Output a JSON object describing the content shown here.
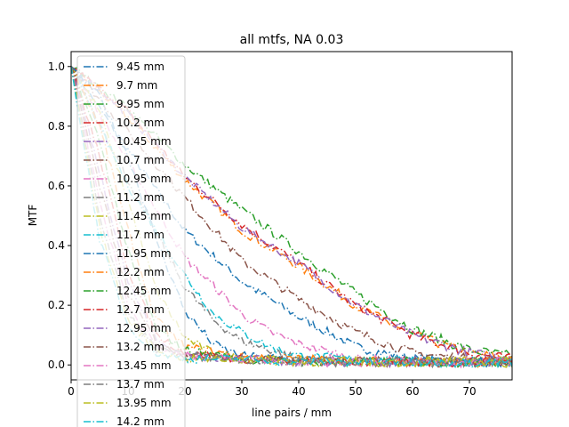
{
  "chart_data": {
    "type": "line",
    "title": "all mtfs, NA 0.03",
    "xlabel": "line pairs / mm",
    "ylabel": "MTF",
    "xlim": [
      0,
      77.5
    ],
    "ylim": [
      -0.05,
      1.05
    ],
    "xticks": [
      0,
      10,
      20,
      30,
      40,
      50,
      60,
      70
    ],
    "yticks": [
      0.0,
      0.2,
      0.4,
      0.6,
      0.8,
      1.0
    ],
    "xtick_labels": [
      "0",
      "10",
      "20",
      "30",
      "40",
      "50",
      "60",
      "70"
    ],
    "ytick_labels": [
      "0.0",
      "0.2",
      "0.4",
      "0.6",
      "0.8",
      "1.0"
    ],
    "grid": false,
    "line_style": "dash-dot",
    "legend": {
      "placement": "upper-left"
    },
    "noise_amplitude": 0.012,
    "series": [
      {
        "name": "9.45 mm",
        "color": "#1f77b4",
        "x": [
          0,
          10,
          20,
          30,
          40,
          50,
          60,
          70,
          77
        ],
        "y": [
          1.0,
          0.72,
          0.45,
          0.28,
          0.16,
          0.06,
          0.02,
          0.01,
          0.01
        ]
      },
      {
        "name": "9.7 mm",
        "color": "#ff7f0e",
        "x": [
          0,
          10,
          20,
          30,
          40,
          50,
          60,
          70,
          77
        ],
        "y": [
          1.0,
          0.83,
          0.62,
          0.45,
          0.33,
          0.2,
          0.1,
          0.04,
          0.02
        ]
      },
      {
        "name": "9.95 mm",
        "color": "#2ca02c",
        "x": [
          0,
          10,
          20,
          30,
          40,
          50,
          60,
          70,
          77
        ],
        "y": [
          1.0,
          0.86,
          0.67,
          0.52,
          0.38,
          0.24,
          0.12,
          0.05,
          0.03
        ]
      },
      {
        "name": "10.2 mm",
        "color": "#d62728",
        "x": [
          0,
          10,
          20,
          30,
          40,
          50,
          60,
          70,
          77
        ],
        "y": [
          1.0,
          0.85,
          0.63,
          0.47,
          0.34,
          0.2,
          0.1,
          0.04,
          0.02
        ]
      },
      {
        "name": "10.45 mm",
        "color": "#9467bd",
        "x": [
          0,
          10,
          20,
          30,
          40,
          50,
          60,
          70,
          77
        ],
        "y": [
          1.0,
          0.84,
          0.63,
          0.46,
          0.34,
          0.2,
          0.1,
          0.04,
          0.02
        ]
      },
      {
        "name": "10.7 mm",
        "color": "#8c564b",
        "x": [
          0,
          10,
          20,
          30,
          40,
          50,
          60,
          70,
          77
        ],
        "y": [
          1.0,
          0.78,
          0.56,
          0.35,
          0.22,
          0.11,
          0.04,
          0.02,
          0.01
        ]
      },
      {
        "name": "10.95 mm",
        "color": "#e377c2",
        "x": [
          0,
          10,
          20,
          30,
          40,
          35,
          50,
          60,
          77
        ],
        "y": [
          1.0,
          0.68,
          0.36,
          0.17,
          0.07,
          0.11,
          0.02,
          0.01,
          0.01
        ]
      },
      {
        "name": "11.2 mm",
        "color": "#7f7f7f",
        "x": [
          0,
          10,
          20,
          25,
          30,
          40,
          50,
          60,
          77
        ],
        "y": [
          1.0,
          0.62,
          0.26,
          0.15,
          0.08,
          0.02,
          0.01,
          0.01,
          0.01
        ]
      },
      {
        "name": "11.45 mm",
        "color": "#bcbd22",
        "x": [
          0,
          5,
          10,
          15,
          20,
          25,
          30,
          50,
          77
        ],
        "y": [
          1.0,
          0.85,
          0.55,
          0.25,
          0.09,
          0.04,
          0.02,
          0.01,
          0.01
        ]
      },
      {
        "name": "11.7 mm",
        "color": "#17becf",
        "x": [
          0,
          10,
          20,
          25,
          30,
          35,
          40,
          60,
          77
        ],
        "y": [
          1.0,
          0.6,
          0.3,
          0.17,
          0.11,
          0.06,
          0.03,
          0.01,
          0.01
        ]
      },
      {
        "name": "11.95 mm",
        "color": "#1f77b4",
        "x": [
          0,
          5,
          10,
          15,
          20,
          25,
          30,
          50,
          77
        ],
        "y": [
          1.0,
          0.9,
          0.7,
          0.42,
          0.18,
          0.07,
          0.03,
          0.01,
          0.01
        ]
      },
      {
        "name": "12.2 mm",
        "color": "#ff7f0e",
        "x": [
          0,
          5,
          10,
          15,
          20,
          30,
          40,
          60,
          77
        ],
        "y": [
          1.0,
          0.8,
          0.45,
          0.15,
          0.06,
          0.03,
          0.02,
          0.01,
          0.01
        ]
      },
      {
        "name": "12.45 mm",
        "color": "#2ca02c",
        "x": [
          0,
          5,
          10,
          15,
          20,
          30,
          40,
          60,
          77
        ],
        "y": [
          1.0,
          0.75,
          0.38,
          0.12,
          0.05,
          0.02,
          0.01,
          0.01,
          0.01
        ]
      },
      {
        "name": "12.7 mm",
        "color": "#d62728",
        "x": [
          0,
          5,
          10,
          15,
          20,
          30,
          40,
          60,
          77
        ],
        "y": [
          1.0,
          0.7,
          0.32,
          0.1,
          0.04,
          0.02,
          0.01,
          0.01,
          0.01
        ]
      },
      {
        "name": "12.95 mm",
        "color": "#9467bd",
        "x": [
          0,
          5,
          10,
          15,
          20,
          30,
          40,
          60,
          77
        ],
        "y": [
          1.0,
          0.65,
          0.28,
          0.08,
          0.03,
          0.02,
          0.01,
          0.01,
          0.01
        ]
      },
      {
        "name": "13.2 mm",
        "color": "#8c564b",
        "x": [
          0,
          5,
          10,
          15,
          20,
          30,
          40,
          60,
          77
        ],
        "y": [
          1.0,
          0.6,
          0.24,
          0.07,
          0.03,
          0.02,
          0.01,
          0.01,
          0.01
        ]
      },
      {
        "name": "13.45 mm",
        "color": "#e377c2",
        "x": [
          0,
          5,
          10,
          15,
          20,
          30,
          40,
          60,
          77
        ],
        "y": [
          1.0,
          0.55,
          0.2,
          0.06,
          0.03,
          0.02,
          0.01,
          0.01,
          0.01
        ]
      },
      {
        "name": "13.7 mm",
        "color": "#7f7f7f",
        "x": [
          0,
          5,
          10,
          15,
          20,
          30,
          40,
          60,
          77
        ],
        "y": [
          1.0,
          0.5,
          0.17,
          0.05,
          0.03,
          0.02,
          0.01,
          0.01,
          0.01
        ]
      },
      {
        "name": "13.95 mm",
        "color": "#bcbd22",
        "x": [
          0,
          5,
          10,
          15,
          20,
          30,
          40,
          60,
          77
        ],
        "y": [
          1.0,
          0.46,
          0.15,
          0.05,
          0.02,
          0.02,
          0.01,
          0.01,
          0.01
        ]
      },
      {
        "name": "14.2 mm",
        "color": "#17becf",
        "x": [
          0,
          5,
          10,
          15,
          20,
          30,
          40,
          60,
          77
        ],
        "y": [
          1.0,
          0.42,
          0.13,
          0.04,
          0.02,
          0.02,
          0.01,
          0.01,
          0.01
        ]
      }
    ]
  }
}
